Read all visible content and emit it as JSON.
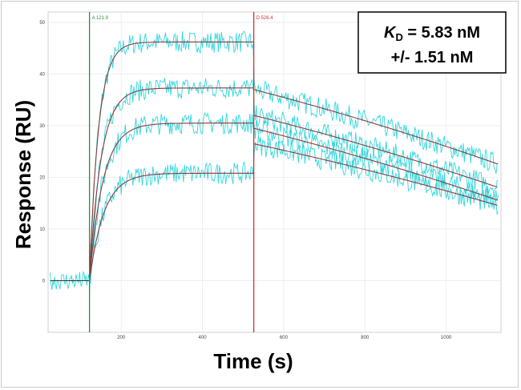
{
  "chart_data": {
    "type": "line",
    "xlabel": "Time (s)",
    "ylabel": "Response (RU)",
    "xlim": [
      20,
      1135
    ],
    "ylim": [
      -10,
      52
    ],
    "x_ticks": [
      200,
      400,
      600,
      800,
      1000
    ],
    "y_ticks": [
      0,
      10,
      20,
      30,
      40,
      50
    ],
    "grid": true,
    "markers": [
      {
        "label": "A 121.9",
        "x": 121.9,
        "color": "#2e8b3a"
      },
      {
        "label": "D 526.4",
        "x": 526.4,
        "color": "#cc3333"
      }
    ],
    "annotation": {
      "kd_symbol": "K",
      "kd_subscript": "D",
      "kd_value": " = 5.83 nM",
      "error": "+/- 1.51 nM"
    },
    "colors": {
      "data": "#33d6dd",
      "fit": "#8a3b3b",
      "baseline_fit": "#333333"
    },
    "baseline": {
      "x_start": 25,
      "x_end": 121.9,
      "y": 0
    },
    "curves": [
      {
        "plateau": 46.2,
        "k_assoc": 0.045,
        "dissoc_start": 37.0,
        "dissoc_end": 22.5
      },
      {
        "plateau": 37.3,
        "k_assoc": 0.035,
        "dissoc_start": 32.0,
        "dissoc_end": 18.0
      },
      {
        "plateau": 30.5,
        "k_assoc": 0.03,
        "dissoc_start": 29.5,
        "dissoc_end": 15.5
      },
      {
        "plateau": 20.8,
        "k_assoc": 0.028,
        "dissoc_start": 26.5,
        "dissoc_end": 14.5
      }
    ],
    "x_end": 1130
  }
}
